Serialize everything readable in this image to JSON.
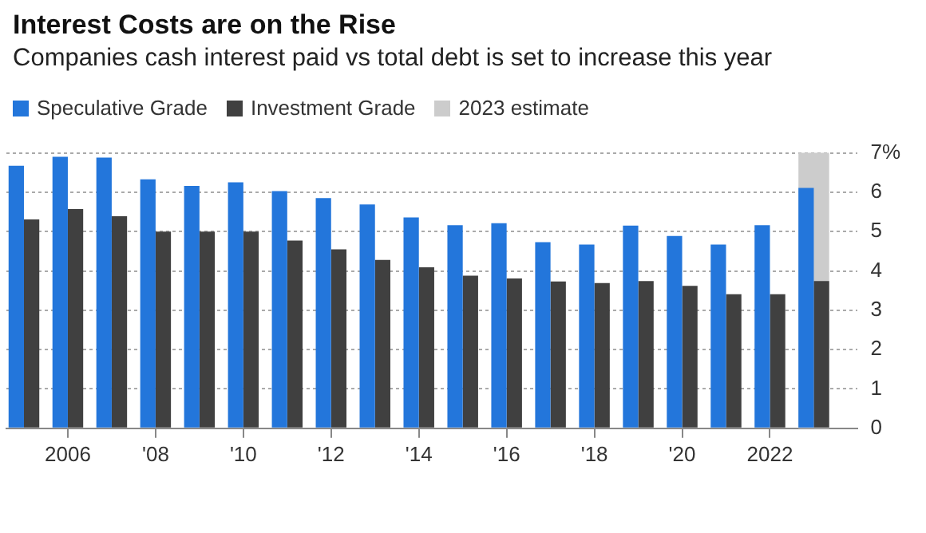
{
  "chart_data": {
    "type": "bar",
    "title": "Interest Costs are on the Rise",
    "subtitle": "Companies cash interest paid vs total debt is set to increase this year",
    "x": [
      2005,
      2006,
      2007,
      2008,
      2009,
      2010,
      2011,
      2012,
      2013,
      2014,
      2015,
      2016,
      2017,
      2018,
      2019,
      2020,
      2021,
      2022,
      2023
    ],
    "series": [
      {
        "name": "Speculative Grade",
        "color": "#2376db",
        "values": [
          6.67,
          6.9,
          6.88,
          6.33,
          6.16,
          6.25,
          6.03,
          5.85,
          5.69,
          5.36,
          5.16,
          5.21,
          4.73,
          4.67,
          5.15,
          4.89,
          4.67,
          5.16,
          6.11
        ]
      },
      {
        "name": "Investment Grade",
        "color": "#404040",
        "values": [
          5.31,
          5.57,
          5.39,
          5.0,
          5.0,
          5.0,
          4.77,
          4.55,
          4.28,
          4.09,
          3.88,
          3.81,
          3.73,
          3.69,
          3.74,
          3.62,
          3.41,
          3.41,
          3.74
        ]
      }
    ],
    "bands": [
      {
        "axis": "x",
        "from": 2022.65,
        "to": 2023.35,
        "label": "2023 estimate",
        "color": "#cccccc"
      }
    ],
    "xlim": [
      2004.6,
      2024
    ],
    "xticks": [
      {
        "value": 2006,
        "label": "2006"
      },
      {
        "value": 2008,
        "label": "'08"
      },
      {
        "value": 2010,
        "label": "'10"
      },
      {
        "value": 2012,
        "label": "'12"
      },
      {
        "value": 2014,
        "label": "'14"
      },
      {
        "value": 2016,
        "label": "'16"
      },
      {
        "value": 2018,
        "label": "'18"
      },
      {
        "value": 2020,
        "label": "'20"
      },
      {
        "value": 2022,
        "label": "2022"
      }
    ],
    "ylim": [
      0,
      7
    ],
    "yticks": [
      0,
      1,
      2,
      3,
      4,
      5,
      6,
      {
        "value": 7,
        "label": "7%"
      }
    ],
    "grid": "y",
    "legend": "top left"
  }
}
